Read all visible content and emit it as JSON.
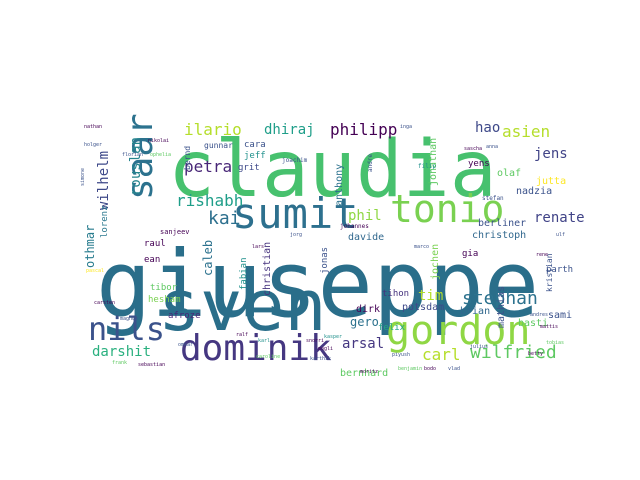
{
  "figure": {
    "type": "word-cloud",
    "background": "#ffffff",
    "palette": [
      "#440154",
      "#3b528b",
      "#21918c",
      "#5ec962",
      "#fde725"
    ],
    "words": [
      {
        "text": "giuseppe",
        "color": "#2a6e8a"
      },
      {
        "text": "claudia",
        "color": "#47c16e"
      },
      {
        "text": "sven",
        "color": "#2a6e8a"
      },
      {
        "text": "gordon",
        "color": "#8fd744"
      },
      {
        "text": "tonio",
        "color": "#7ad151"
      },
      {
        "text": "sumit",
        "color": "#2d708e"
      },
      {
        "text": "dominik",
        "color": "#453781"
      },
      {
        "text": "saar",
        "color": "#2c728e"
      },
      {
        "text": "nils",
        "color": "#3b528b"
      },
      {
        "text": "stephan",
        "color": "#2c728e"
      },
      {
        "text": "wilfried",
        "color": "#5ec962"
      },
      {
        "text": "petra",
        "color": "#482677"
      },
      {
        "text": "philipp",
        "color": "#440154"
      },
      {
        "text": "kai",
        "color": "#2d708e"
      },
      {
        "text": "ilario",
        "color": "#b5de2b"
      },
      {
        "text": "asien",
        "color": "#b5de2b"
      },
      {
        "text": "rishabh",
        "color": "#1f9e89"
      },
      {
        "text": "carl",
        "color": "#b5de2b"
      },
      {
        "text": "darshit",
        "color": "#2ab07f"
      },
      {
        "text": "arsal",
        "color": "#453781"
      },
      {
        "text": "rouslan",
        "color": "#25858e"
      },
      {
        "text": "hao",
        "color": "#3e4989"
      },
      {
        "text": "jens",
        "color": "#414487"
      },
      {
        "text": "renate",
        "color": "#404387"
      },
      {
        "text": "phil",
        "color": "#8fd744"
      },
      {
        "text": "dhiraj",
        "color": "#1f9e89"
      },
      {
        "text": "tim",
        "color": "#b5de2b"
      },
      {
        "text": "wilhelm",
        "color": "#3e4989"
      },
      {
        "text": "othmar",
        "color": "#287c8e"
      },
      {
        "text": "caleb",
        "color": "#2c728e"
      },
      {
        "text": "gero",
        "color": "#2c728e"
      },
      {
        "text": "mathias",
        "color": "#3b528b"
      },
      {
        "text": "jonathan",
        "color": "#5ec962"
      },
      {
        "text": "anthony",
        "color": "#2c728e"
      },
      {
        "text": "christian",
        "color": "#46337e"
      },
      {
        "text": "davide",
        "color": "#31688e"
      },
      {
        "text": "christoph",
        "color": "#31688e"
      },
      {
        "text": "jochen",
        "color": "#7ad151"
      },
      {
        "text": "potsdam",
        "color": "#3e4989"
      },
      {
        "text": "brian",
        "color": "#31688e"
      },
      {
        "text": "dirk",
        "color": "#440154"
      },
      {
        "text": "felix",
        "color": "#20a386"
      },
      {
        "text": "bernhard",
        "color": "#5ec962"
      },
      {
        "text": "berliner",
        "color": "#3b528b"
      },
      {
        "text": "basti",
        "color": "#5ec962"
      },
      {
        "text": "sami",
        "color": "#3b528b"
      },
      {
        "text": "jutta",
        "color": "#fde725"
      },
      {
        "text": "nadzia",
        "color": "#3b528b"
      },
      {
        "text": "olaf",
        "color": "#5ec962"
      },
      {
        "text": "yens",
        "color": "#440154"
      },
      {
        "text": "grit",
        "color": "#3e4989"
      },
      {
        "text": "jeff",
        "color": "#21918c"
      },
      {
        "text": "cara",
        "color": "#3b528b"
      },
      {
        "text": "gunnar",
        "color": "#3b528b"
      },
      {
        "text": "bernd",
        "color": "#3b528b"
      },
      {
        "text": "lorenz",
        "color": "#2a788e"
      },
      {
        "text": "raul",
        "color": "#440154"
      },
      {
        "text": "ean",
        "color": "#440154"
      },
      {
        "text": "tibor",
        "color": "#5ec962"
      },
      {
        "text": "hesham",
        "color": "#7ad151"
      },
      {
        "text": "fabian",
        "color": "#21918c"
      },
      {
        "text": "afroze",
        "color": "#482677"
      },
      {
        "text": "jonas",
        "color": "#3b528b"
      },
      {
        "text": "tihon",
        "color": "#46337e"
      },
      {
        "text": "gia",
        "color": "#440154"
      },
      {
        "text": "parth",
        "color": "#3b528b"
      },
      {
        "text": "kristian",
        "color": "#3b528b"
      },
      {
        "text": "sanjeev",
        "color": "#440154"
      },
      {
        "text": "joachim",
        "color": "#3b528b"
      },
      {
        "text": "johannes",
        "color": "#440154"
      },
      {
        "text": "stefan",
        "color": "#3b528b"
      },
      {
        "text": "filip",
        "color": "#21918c"
      },
      {
        "text": "andre",
        "color": "#3b528b"
      },
      {
        "text": "inga",
        "color": "#3b528b"
      },
      {
        "text": "mattis",
        "color": "#440154"
      },
      {
        "text": "andres",
        "color": "#3b528b"
      },
      {
        "text": "betty",
        "color": "#440154"
      },
      {
        "text": "julius",
        "color": "#3b528b"
      },
      {
        "text": "nikolai",
        "color": "#440154"
      },
      {
        "text": "florian",
        "color": "#3b528b"
      },
      {
        "text": "moritz",
        "color": "#440154"
      },
      {
        "text": "benjamin",
        "color": "#5ec962"
      },
      {
        "text": "karthik",
        "color": "#3b528b"
      },
      {
        "text": "caroline",
        "color": "#5ec962"
      },
      {
        "text": "piyush",
        "color": "#3b528b"
      },
      {
        "text": "bodo",
        "color": "#440154"
      },
      {
        "text": "vlad",
        "color": "#3b528b"
      },
      {
        "text": "ophelia",
        "color": "#5ec962"
      },
      {
        "text": "sascha",
        "color": "#440154"
      },
      {
        "text": "anna",
        "color": "#3b528b"
      },
      {
        "text": "karl",
        "color": "#21918c"
      },
      {
        "text": "ralf",
        "color": "#440154"
      },
      {
        "text": "omkar",
        "color": "#3b528b"
      },
      {
        "text": "snorri",
        "color": "#440154"
      },
      {
        "text": "frank",
        "color": "#5ec962"
      },
      {
        "text": "magnus",
        "color": "#3b528b"
      },
      {
        "text": "mogli",
        "color": "#440154"
      },
      {
        "text": "pascal",
        "color": "#fde725"
      },
      {
        "text": "holger",
        "color": "#3b528b"
      },
      {
        "text": "nathan",
        "color": "#440154"
      },
      {
        "text": "simone",
        "color": "#3b528b"
      },
      {
        "text": "carsten",
        "color": "#440154"
      },
      {
        "text": "kasper",
        "color": "#21918c"
      },
      {
        "text": "jorg",
        "color": "#3b528b"
      },
      {
        "text": "lars",
        "color": "#440154"
      },
      {
        "text": "marco",
        "color": "#3b528b"
      },
      {
        "text": "rene",
        "color": "#440154"
      },
      {
        "text": "tobias",
        "color": "#5ec962"
      },
      {
        "text": "ulf",
        "color": "#3b528b"
      },
      {
        "text": "sebastian",
        "color": "#440154"
      }
    ]
  }
}
